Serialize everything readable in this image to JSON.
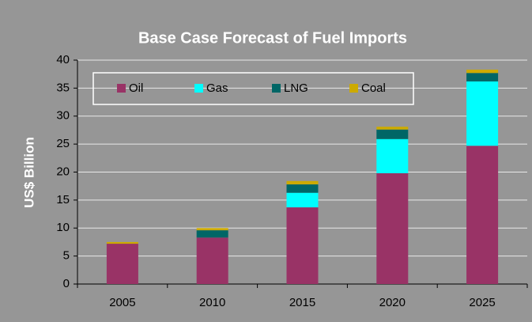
{
  "chart_data": {
    "type": "stacked_bar",
    "title": "Base Case Forecast of Fuel Imports",
    "y_label": "US$ Billion",
    "categories": [
      "2005",
      "2010",
      "2015",
      "2020",
      "2025"
    ],
    "series": [
      {
        "name": "Oil",
        "color": "#993366",
        "values": [
          7.2,
          8.3,
          13.7,
          19.8,
          24.7
        ]
      },
      {
        "name": "Gas",
        "color": "#00ffff",
        "values": [
          0,
          0,
          2.6,
          6.1,
          11.5
        ]
      },
      {
        "name": "LNG",
        "color": "#006666",
        "values": [
          0,
          1.3,
          1.5,
          1.7,
          1.5
        ]
      },
      {
        "name": "Coal",
        "color": "#ccaa00",
        "values": [
          0.3,
          0.4,
          0.6,
          0.5,
          0.6
        ]
      }
    ],
    "ylim": [
      0,
      40
    ],
    "yticks": [
      0,
      5,
      10,
      15,
      20,
      25,
      30,
      35,
      40
    ],
    "grid": true,
    "legend": "top"
  }
}
